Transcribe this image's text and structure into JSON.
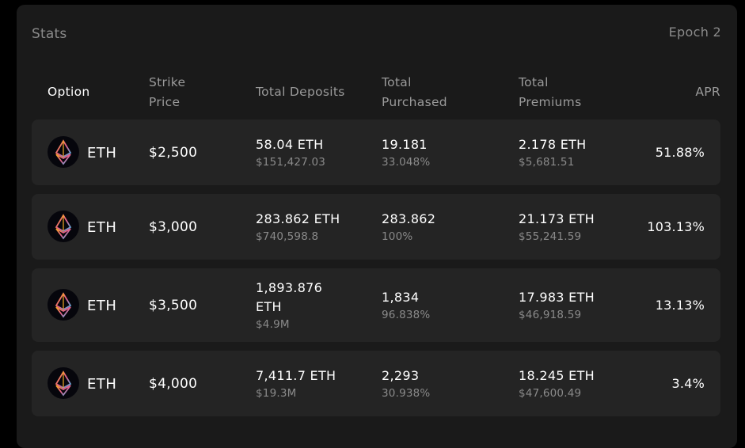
{
  "panel": {
    "title": "Stats",
    "epoch": "Epoch 2"
  },
  "header": {
    "option": "Option",
    "strike_line1": "Strike",
    "strike_line2": "Price",
    "deposits": "Total Deposits",
    "purchased_line1": "Total",
    "purchased_line2": "Purchased",
    "premiums_line1": "Total",
    "premiums_line2": "Premiums",
    "apr": "APR"
  },
  "icon": "eth-icon",
  "colors": {
    "background": "#000000",
    "panel": "#1a1a1a",
    "row": "#242424",
    "text_primary": "#ffffff",
    "text_secondary": "#8a8a8a"
  },
  "rows": [
    {
      "asset": "ETH",
      "strike": "$2,500",
      "deposits": "58.04 ETH",
      "deposits_usd": "$151,427.03",
      "purchased": "19.181",
      "purchased_pct": "33.048%",
      "premiums": "2.178 ETH",
      "premiums_usd": "$5,681.51",
      "apr": "51.88%"
    },
    {
      "asset": "ETH",
      "strike": "$3,000",
      "deposits": "283.862 ETH",
      "deposits_usd": "$740,598.8",
      "purchased": "283.862",
      "purchased_pct": "100%",
      "premiums": "21.173 ETH",
      "premiums_usd": "$55,241.59",
      "apr": "103.13%"
    },
    {
      "asset": "ETH",
      "strike": "$3,500",
      "deposits": "1,893.876 ETH",
      "deposits_usd": "$4.9M",
      "purchased": "1,834",
      "purchased_pct": "96.838%",
      "premiums": "17.983 ETH",
      "premiums_usd": "$46,918.59",
      "apr": "13.13%"
    },
    {
      "asset": "ETH",
      "strike": "$4,000",
      "deposits": "7,411.7 ETH",
      "deposits_usd": "$19.3M",
      "purchased": "2,293",
      "purchased_pct": "30.938%",
      "premiums": "18.245 ETH",
      "premiums_usd": "$47,600.49",
      "apr": "3.4%"
    }
  ]
}
